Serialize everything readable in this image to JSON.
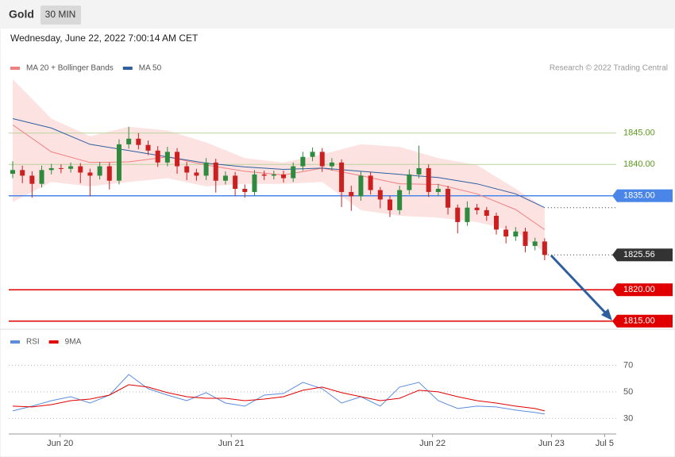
{
  "chart_data": [
    {
      "type": "candlestick",
      "title": "Gold",
      "timeframe": "30 MIN",
      "subtitle": "Wednesday, June 22, 2022 7:00:14 AM CET",
      "source": "Research © 2022 Trading Central",
      "x": [
        0,
        1,
        2,
        3,
        4,
        5,
        6,
        7,
        8,
        9,
        10,
        11,
        12,
        13,
        14,
        15,
        16,
        17,
        18,
        19,
        20,
        21,
        22,
        23,
        24,
        25,
        26,
        27,
        28,
        29,
        30,
        31,
        32,
        33,
        34,
        35,
        36,
        37,
        38,
        39,
        40,
        41,
        42,
        43,
        44,
        45,
        46,
        47,
        48,
        49,
        50,
        51,
        52,
        53,
        54,
        55
      ],
      "open": [
        1838.5,
        1839.1,
        1838.2,
        1836.9,
        1839.1,
        1839.4,
        1839.3,
        1839.7,
        1838.7,
        1838.2,
        1839.7,
        1837.4,
        1843.2,
        1844.1,
        1843.1,
        1842.2,
        1840.3,
        1842.0,
        1839.7,
        1838.7,
        1838.2,
        1840.3,
        1837.4,
        1838.2,
        1836.1,
        1835.6,
        1838.4,
        1838.2,
        1838.4,
        1837.8,
        1839.7,
        1841.2,
        1842.0,
        1839.7,
        1840.3,
        1835.6,
        1834.9,
        1838.2,
        1835.9,
        1834.4,
        1832.7,
        1835.9,
        1838.4,
        1839.4,
        1835.6,
        1836.1,
        1833.1,
        1830.8,
        1833.1,
        1832.7,
        1831.8,
        1829.6,
        1828.5,
        1829.3,
        1827.0,
        1827.7
      ],
      "high": [
        1840.5,
        1839.8,
        1838.9,
        1839.8,
        1840.1,
        1840.0,
        1840.3,
        1840.2,
        1839.3,
        1840.4,
        1840.3,
        1844.0,
        1846.0,
        1845.0,
        1843.8,
        1842.9,
        1842.8,
        1842.6,
        1840.4,
        1839.3,
        1841.0,
        1840.9,
        1838.9,
        1838.8,
        1836.8,
        1839.1,
        1839.0,
        1839.0,
        1839.0,
        1840.3,
        1842.0,
        1842.7,
        1842.6,
        1841.0,
        1840.8,
        1836.6,
        1838.9,
        1838.8,
        1836.4,
        1835.0,
        1836.6,
        1839.2,
        1843.0,
        1840.0,
        1836.9,
        1836.6,
        1833.6,
        1834.1,
        1833.7,
        1833.2,
        1832.3,
        1830.2,
        1830.0,
        1829.9,
        1828.3,
        1828.2
      ],
      "low": [
        1837.8,
        1837.0,
        1834.7,
        1836.3,
        1838.4,
        1838.6,
        1838.7,
        1837.0,
        1834.9,
        1837.6,
        1836.0,
        1836.8,
        1842.5,
        1842.4,
        1841.5,
        1839.6,
        1839.7,
        1838.5,
        1837.5,
        1837.4,
        1837.5,
        1835.5,
        1836.8,
        1835.0,
        1834.7,
        1835.0,
        1837.5,
        1837.6,
        1837.1,
        1837.2,
        1839.0,
        1840.5,
        1838.8,
        1839.0,
        1833.2,
        1832.6,
        1834.2,
        1835.2,
        1833.0,
        1831.6,
        1832.0,
        1835.2,
        1837.8,
        1834.8,
        1835.0,
        1832.0,
        1829.0,
        1830.2,
        1832.0,
        1831.0,
        1828.8,
        1827.4,
        1827.8,
        1826.0,
        1826.3,
        1824.7
      ],
      "close": [
        1839.1,
        1838.2,
        1836.9,
        1839.1,
        1839.4,
        1839.3,
        1839.7,
        1838.7,
        1838.2,
        1839.7,
        1837.4,
        1843.2,
        1844.1,
        1843.1,
        1842.2,
        1840.3,
        1842.0,
        1839.7,
        1838.7,
        1838.2,
        1840.3,
        1837.4,
        1838.2,
        1836.1,
        1835.6,
        1838.4,
        1838.2,
        1838.4,
        1837.8,
        1839.7,
        1841.2,
        1842.0,
        1839.7,
        1840.3,
        1835.6,
        1834.9,
        1838.2,
        1835.9,
        1834.4,
        1832.7,
        1835.9,
        1838.4,
        1839.4,
        1835.6,
        1836.1,
        1833.1,
        1830.8,
        1833.1,
        1832.7,
        1831.8,
        1829.6,
        1828.5,
        1829.3,
        1827.0,
        1827.7,
        1825.56
      ],
      "up_color": "#2e8b3e",
      "down_color": "#cc1f1f",
      "series": [
        {
          "name": "MA 20 + Bollinger Bands",
          "color": "#f08080",
          "band_color": "#fde2e2",
          "x": [
            0,
            4,
            8,
            12,
            16,
            20,
            24,
            28,
            32,
            36,
            40,
            44,
            48,
            52,
            55
          ],
          "values": [
            1846.3,
            1842.0,
            1840.3,
            1840.4,
            1841.2,
            1839.9,
            1838.9,
            1838.3,
            1839.4,
            1838.2,
            1836.9,
            1836.8,
            1835.3,
            1832.8,
            1829.6
          ],
          "upper": [
            1853.6,
            1847.3,
            1844.5,
            1846.0,
            1845.4,
            1843.5,
            1841.0,
            1840.3,
            1841.6,
            1843.2,
            1842.8,
            1841.0,
            1839.9,
            1836.1,
            1833.1
          ],
          "lower": [
            1834.0,
            1837.2,
            1836.5,
            1837.2,
            1837.8,
            1836.5,
            1836.9,
            1836.9,
            1837.2,
            1832.7,
            1831.8,
            1831.5,
            1830.8,
            1829.3,
            1826.0
          ]
        },
        {
          "name": "MA 50",
          "color": "#2f5f9e",
          "x": [
            0,
            4,
            8,
            12,
            16,
            20,
            24,
            28,
            32,
            36,
            40,
            44,
            48,
            52,
            55
          ],
          "values": [
            1847.3,
            1845.8,
            1843.2,
            1842.2,
            1841.2,
            1840.2,
            1839.6,
            1839.2,
            1839.4,
            1838.9,
            1838.4,
            1837.9,
            1836.9,
            1835.3,
            1833.1
          ]
        }
      ],
      "levels": [
        {
          "value": 1845,
          "label": "1845.00",
          "color": "#b9d39a",
          "text_color": "#5a9a1a",
          "style": "solid",
          "box": false
        },
        {
          "value": 1840,
          "label": "1840.00",
          "color": "#b9d39a",
          "text_color": "#5a9a1a",
          "style": "solid",
          "box": false
        },
        {
          "value": 1835,
          "label": "1835.00",
          "color": "#4a86e8",
          "text_color": "#ffffff",
          "style": "solid",
          "box": true
        },
        {
          "value": 1825.56,
          "label": "1825.56",
          "color": "#333333",
          "text_color": "#ffffff",
          "style": "dotted",
          "box": true
        },
        {
          "value": 1820,
          "label": "1820.00",
          "color": "#e00000",
          "text_color": "#ffffff",
          "style": "solid",
          "box": true
        },
        {
          "value": 1815,
          "label": "1815.00",
          "color": "#e00000",
          "text_color": "#ffffff",
          "style": "solid",
          "box": true
        }
      ],
      "xlim": [
        -0.41,
        62.4
      ],
      "ylim": [
        1813.7,
        1854.2
      ]
    },
    {
      "type": "line",
      "series": [
        {
          "name": "RSI",
          "color": "#5b8ddb",
          "x": [
            0,
            2,
            4,
            6,
            8,
            10,
            12,
            14,
            16,
            18,
            20,
            22,
            24,
            26,
            28,
            30,
            32,
            34,
            36,
            38,
            40,
            42,
            44,
            46,
            48,
            50,
            52,
            54,
            55
          ],
          "values": [
            35.7,
            39.3,
            43.4,
            46.4,
            41.6,
            47.6,
            63.1,
            52.4,
            47.6,
            43.4,
            49.4,
            41.6,
            39.3,
            47.6,
            48.8,
            57.2,
            52.4,
            41.6,
            46.4,
            39.3,
            53.6,
            57.2,
            43.4,
            37.5,
            39.3,
            38.7,
            36.3,
            34.5,
            33.3
          ]
        },
        {
          "name": "9MA",
          "color": "#e00000",
          "x": [
            0,
            2,
            4,
            6,
            8,
            10,
            12,
            14,
            16,
            18,
            20,
            22,
            24,
            26,
            28,
            30,
            32,
            34,
            36,
            38,
            40,
            42,
            44,
            46,
            48,
            50,
            52,
            54,
            55
          ],
          "values": [
            39.3,
            38.7,
            40.4,
            43.4,
            44.6,
            47.6,
            55.4,
            53.6,
            49.4,
            46.4,
            45.2,
            45.2,
            43.4,
            44.6,
            46.4,
            51.2,
            53.6,
            49.4,
            46.4,
            43.4,
            45.2,
            51.2,
            50.0,
            46.4,
            43.4,
            41.6,
            39.3,
            37.5,
            35.7
          ]
        }
      ],
      "xlim": [
        -0.41,
        62.4
      ],
      "ylim": [
        22.5,
        82.2
      ],
      "yticks": [
        30,
        50,
        70
      ],
      "xticks": [
        {
          "value": 4.9,
          "label": "Jun 20"
        },
        {
          "value": 22.6,
          "label": "Jun 21"
        },
        {
          "value": 43.4,
          "label": "Jun 22"
        },
        {
          "value": 55.7,
          "label": "Jun 23"
        },
        {
          "value": 61.2,
          "label": "Jul 5"
        }
      ]
    }
  ]
}
